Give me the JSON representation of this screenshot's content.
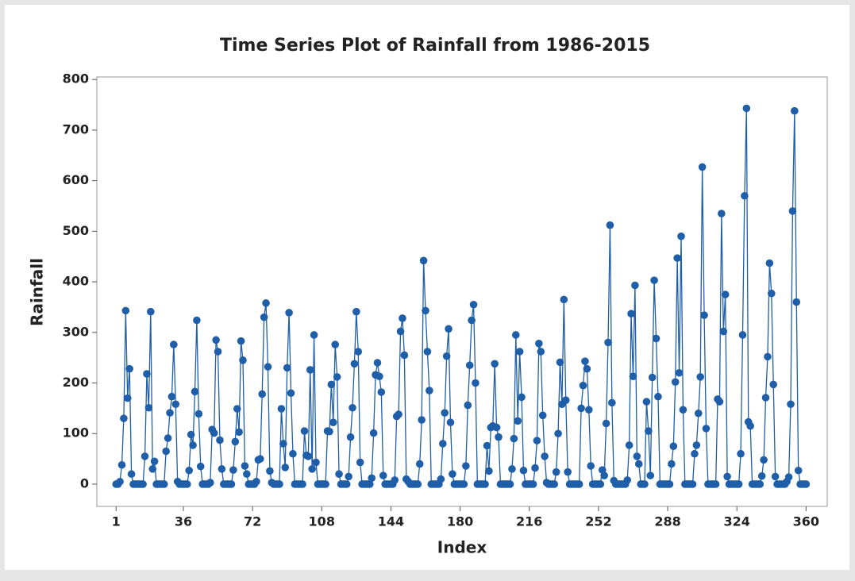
{
  "chart_data": {
    "type": "line",
    "title": "Time Series Plot of Rainfall from 1986-2015",
    "x_label": "Index",
    "y_label": "Rainfall",
    "color": "#1f5ea8",
    "xlim": [
      -9,
      371
    ],
    "ylim": [
      -44,
      805
    ],
    "xticks": [
      1,
      36,
      72,
      108,
      144,
      180,
      216,
      252,
      288,
      324,
      360
    ],
    "yticks": [
      0,
      100,
      200,
      300,
      400,
      500,
      600,
      700,
      800
    ],
    "x": [
      1,
      2,
      3,
      4,
      5,
      6,
      7,
      8,
      9,
      10,
      11,
      12,
      13,
      14,
      15,
      16,
      17,
      18,
      19,
      20,
      21,
      22,
      23,
      24,
      25,
      26,
      27,
      28,
      29,
      30,
      31,
      32,
      33,
      34,
      35,
      36,
      37,
      38,
      39,
      40,
      41,
      42,
      43,
      44,
      45,
      46,
      47,
      48,
      49,
      50,
      51,
      52,
      53,
      54,
      55,
      56,
      57,
      58,
      59,
      60,
      61,
      62,
      63,
      64,
      65,
      66,
      67,
      68,
      69,
      70,
      71,
      72,
      73,
      74,
      75,
      76,
      77,
      78,
      79,
      80,
      81,
      82,
      83,
      84,
      85,
      86,
      87,
      88,
      89,
      90,
      91,
      92,
      93,
      94,
      95,
      96,
      97,
      98,
      99,
      100,
      101,
      102,
      103,
      104,
      105,
      106,
      107,
      108,
      109,
      110,
      111,
      112,
      113,
      114,
      115,
      116,
      117,
      118,
      119,
      120,
      121,
      122,
      123,
      124,
      125,
      126,
      127,
      128,
      129,
      130,
      131,
      132,
      133,
      134,
      135,
      136,
      137,
      138,
      139,
      140,
      141,
      142,
      143,
      144,
      145,
      146,
      147,
      148,
      149,
      150,
      151,
      152,
      153,
      154,
      155,
      156,
      157,
      158,
      159,
      160,
      161,
      162,
      163,
      164,
      165,
      166,
      167,
      168,
      169,
      170,
      171,
      172,
      173,
      174,
      175,
      176,
      177,
      178,
      179,
      180,
      181,
      182,
      183,
      184,
      185,
      186,
      187,
      188,
      189,
      190,
      191,
      192,
      193,
      194,
      195,
      196,
      197,
      198,
      199,
      200,
      201,
      202,
      203,
      204,
      205,
      206,
      207,
      208,
      209,
      210,
      211,
      212,
      213,
      214,
      215,
      216,
      217,
      218,
      219,
      220,
      221,
      222,
      223,
      224,
      225,
      226,
      227,
      228,
      229,
      230,
      231,
      232,
      233,
      234,
      235,
      236,
      237,
      238,
      239,
      240,
      241,
      242,
      243,
      244,
      245,
      246,
      247,
      248,
      249,
      250,
      251,
      252,
      253,
      254,
      255,
      256,
      257,
      258,
      259,
      260,
      261,
      262,
      263,
      264,
      265,
      266,
      267,
      268,
      269,
      270,
      271,
      272,
      273,
      274,
      275,
      276,
      277,
      278,
      279,
      280,
      281,
      282,
      283,
      284,
      285,
      286,
      287,
      288,
      289,
      290,
      291,
      292,
      293,
      294,
      295,
      296,
      297,
      298,
      299,
      300,
      301,
      302,
      303,
      304,
      305,
      306,
      307,
      308,
      309,
      310,
      311,
      312,
      313,
      314,
      315,
      316,
      317,
      318,
      319,
      320,
      321,
      322,
      323,
      324,
      325,
      326,
      327,
      328,
      329,
      330,
      331,
      332,
      333,
      334,
      335,
      336,
      337,
      338,
      339,
      340,
      341,
      342,
      343,
      344,
      345,
      346,
      347,
      348,
      349,
      350,
      351,
      352,
      353,
      354,
      355,
      356,
      357,
      358,
      359,
      360
    ],
    "values": [
      0,
      0,
      5,
      38,
      130,
      343,
      170,
      228,
      20,
      0,
      0,
      0,
      0,
      0,
      0,
      55,
      218,
      151,
      341,
      30,
      45,
      0,
      0,
      0,
      0,
      0,
      65,
      91,
      141,
      173,
      276,
      158,
      5,
      0,
      0,
      0,
      0,
      0,
      27,
      98,
      77,
      183,
      324,
      139,
      35,
      0,
      0,
      0,
      0,
      3,
      108,
      101,
      285,
      262,
      87,
      30,
      0,
      0,
      0,
      0,
      0,
      28,
      84,
      149,
      103,
      283,
      245,
      36,
      20,
      0,
      0,
      0,
      0,
      5,
      48,
      50,
      178,
      330,
      358,
      232,
      26,
      3,
      0,
      0,
      0,
      0,
      149,
      80,
      33,
      230,
      339,
      180,
      60,
      0,
      0,
      0,
      0,
      0,
      105,
      57,
      55,
      226,
      30,
      295,
      43,
      0,
      0,
      0,
      0,
      0,
      105,
      104,
      197,
      122,
      276,
      212,
      20,
      0,
      0,
      0,
      0,
      15,
      93,
      151,
      238,
      341,
      262,
      43,
      0,
      0,
      0,
      0,
      0,
      12,
      101,
      216,
      240,
      213,
      182,
      17,
      0,
      0,
      0,
      0,
      0,
      8,
      134,
      138,
      302,
      328,
      255,
      10,
      5,
      0,
      0,
      0,
      0,
      0,
      40,
      127,
      442,
      343,
      262,
      185,
      0,
      0,
      0,
      0,
      0,
      10,
      80,
      141,
      253,
      307,
      122,
      20,
      0,
      0,
      0,
      0,
      0,
      0,
      36,
      156,
      235,
      324,
      355,
      200,
      0,
      0,
      0,
      0,
      0,
      76,
      26,
      112,
      115,
      238,
      112,
      93,
      0,
      0,
      0,
      0,
      0,
      0,
      30,
      90,
      295,
      125,
      262,
      172,
      27,
      0,
      0,
      0,
      0,
      0,
      32,
      86,
      278,
      262,
      136,
      55,
      3,
      0,
      0,
      0,
      0,
      24,
      100,
      241,
      158,
      365,
      166,
      24,
      0,
      0,
      0,
      0,
      0,
      0,
      150,
      195,
      243,
      228,
      147,
      36,
      0,
      0,
      0,
      0,
      0,
      28,
      17,
      120,
      280,
      512,
      161,
      7,
      0,
      0,
      0,
      0,
      0,
      0,
      8,
      77,
      337,
      213,
      393,
      55,
      40,
      0,
      0,
      0,
      163,
      105,
      17,
      211,
      403,
      288,
      173,
      0,
      0,
      0,
      0,
      0,
      0,
      40,
      75,
      202,
      447,
      220,
      490,
      147,
      0,
      0,
      0,
      0,
      0,
      60,
      77,
      140,
      212,
      627,
      334,
      110,
      0,
      0,
      0,
      0,
      0,
      168,
      163,
      535,
      302,
      375,
      15,
      0,
      0,
      0,
      0,
      0,
      0,
      60,
      295,
      570,
      743,
      123,
      115,
      0,
      0,
      0,
      0,
      0,
      16,
      48,
      171,
      252,
      437,
      377,
      197,
      15,
      0,
      0,
      0,
      0,
      0,
      5,
      14,
      158,
      540,
      738,
      360,
      27,
      0,
      0,
      0,
      0
    ]
  }
}
